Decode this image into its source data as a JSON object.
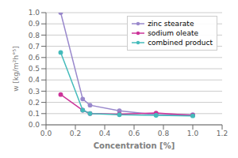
{
  "chart_data": {
    "type": "line",
    "x": [
      0.1,
      0.25,
      0.3,
      0.5,
      0.75,
      1.0
    ],
    "series": [
      {
        "name": "zinc stearate",
        "color": "#9988cc",
        "values": [
          1.0,
          0.23,
          0.175,
          0.125,
          0.09,
          0.09
        ]
      },
      {
        "name": "sodium oleate",
        "color": "#cc3399",
        "values": [
          0.27,
          0.13,
          0.1,
          0.095,
          0.105,
          0.085
        ]
      },
      {
        "name": "combined product",
        "color": "#44bbbb",
        "values": [
          0.645,
          0.13,
          0.1,
          0.09,
          0.085,
          0.08
        ]
      }
    ],
    "xlabel": "Concentration [%]",
    "ylabel": "w [kg/m²h°⁵]",
    "xlim": [
      0,
      1.2
    ],
    "ylim": [
      0,
      1.0
    ],
    "xticks": [
      {
        "value": 0,
        "label": "0.0"
      },
      0.2,
      0.4,
      0.6,
      0.8,
      {
        "value": 1.0,
        "label": "1.0"
      },
      1.2
    ],
    "yticks": [
      {
        "value": 0,
        "label": "0.0"
      },
      0.1,
      0.2,
      0.3,
      0.4,
      0.5,
      0.6,
      0.7,
      0.8,
      0.9,
      {
        "value": 1.0,
        "label": "1.0"
      }
    ],
    "grid": "y",
    "legend": "upper right",
    "marker": "circle",
    "line_style": "solid"
  }
}
